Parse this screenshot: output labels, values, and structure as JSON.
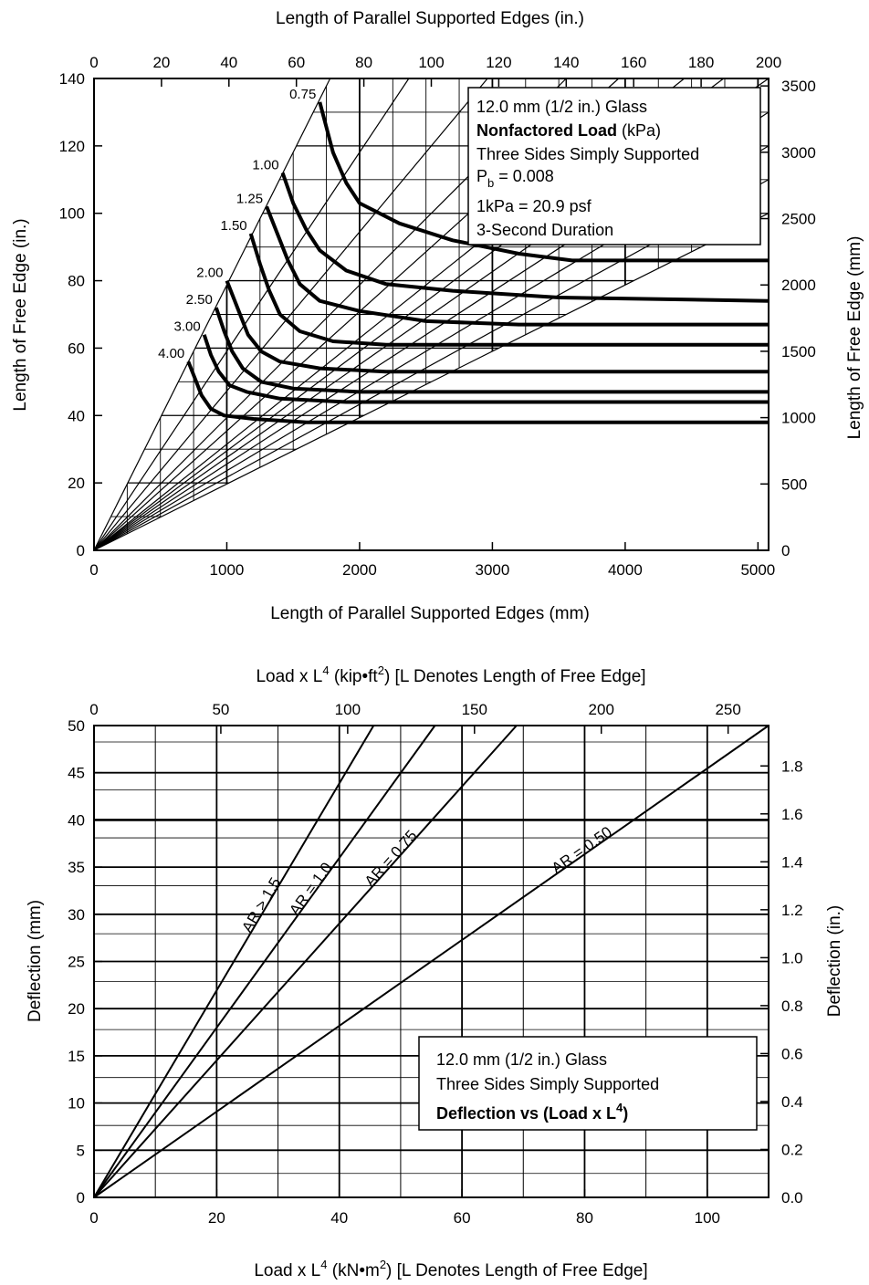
{
  "chart_data": [
    {
      "type": "line",
      "top_axis_title": "Length of Parallel Supported Edges (in.)",
      "xlabel": "Length of Parallel Supported Edges (mm)",
      "ylabel": "Length of Free Edge (in.)",
      "right_axis_title": "Length of Free Edge (mm)",
      "xlim": [
        0,
        5080
      ],
      "ylim": [
        0,
        140
      ],
      "x_ticks": [
        "0",
        "1000",
        "2000",
        "3000",
        "4000",
        "5000"
      ],
      "x_top_ticks": [
        "0",
        "20",
        "40",
        "60",
        "80",
        "100",
        "120",
        "140",
        "160",
        "180",
        "200"
      ],
      "y_ticks": [
        "0",
        "20",
        "40",
        "60",
        "80",
        "100",
        "120",
        "140"
      ],
      "y_right_ticks": [
        "0",
        "500",
        "1000",
        "1500",
        "2000",
        "2500",
        "3000",
        "3500"
      ],
      "grid": true,
      "legend_position": "top-right",
      "legend": {
        "line1": "12.0 mm (1/2 in.) Glass",
        "line2_bold": "Nonfactored Load",
        "line2_rest": " (kPa)",
        "line3": "Three Sides Simply Supported",
        "line4_main": "P",
        "line4_sub": "b",
        "line4_rest": " = 0.008",
        "line5": "1kPa = 20.9 psf",
        "line6": "3-Second Duration"
      },
      "series": [
        {
          "name": "0.75",
          "points": [
            [
              1700,
              133
            ],
            [
              1800,
              118
            ],
            [
              1900,
              109
            ],
            [
              2000,
              103
            ],
            [
              2300,
              97
            ],
            [
              2700,
              92
            ],
            [
              3200,
              88
            ],
            [
              3600,
              86
            ],
            [
              5080,
              86
            ]
          ]
        },
        {
          "name": "1.00",
          "points": [
            [
              1420,
              112
            ],
            [
              1500,
              103
            ],
            [
              1600,
              95
            ],
            [
              1700,
              89
            ],
            [
              1900,
              83
            ],
            [
              2200,
              79
            ],
            [
              2700,
              77
            ],
            [
              3500,
              75
            ],
            [
              5080,
              74
            ]
          ]
        },
        {
          "name": "1.25",
          "points": [
            [
              1300,
              102
            ],
            [
              1380,
              94
            ],
            [
              1460,
              86
            ],
            [
              1550,
              79
            ],
            [
              1700,
              74
            ],
            [
              2000,
              71
            ],
            [
              2500,
              68
            ],
            [
              3200,
              67
            ],
            [
              5080,
              67
            ]
          ]
        },
        {
          "name": "1.50",
          "points": [
            [
              1180,
              94
            ],
            [
              1250,
              85
            ],
            [
              1320,
              77
            ],
            [
              1400,
              70
            ],
            [
              1550,
              65
            ],
            [
              1800,
              62
            ],
            [
              2200,
              61
            ],
            [
              5080,
              61
            ]
          ]
        },
        {
          "name": "2.00",
          "points": [
            [
              1000,
              80
            ],
            [
              1080,
              72
            ],
            [
              1160,
              64
            ],
            [
              1260,
              59
            ],
            [
              1400,
              56
            ],
            [
              1700,
              54
            ],
            [
              2200,
              53
            ],
            [
              5080,
              53
            ]
          ]
        },
        {
          "name": "2.50",
          "points": [
            [
              920,
              72
            ],
            [
              980,
              65
            ],
            [
              1040,
              59
            ],
            [
              1120,
              54
            ],
            [
              1260,
              50
            ],
            [
              1500,
              48
            ],
            [
              2000,
              47
            ],
            [
              5080,
              47
            ]
          ]
        },
        {
          "name": "3.00",
          "points": [
            [
              830,
              64
            ],
            [
              880,
              58
            ],
            [
              940,
              53
            ],
            [
              1020,
              49
            ],
            [
              1150,
              47
            ],
            [
              1400,
              45
            ],
            [
              1900,
              44
            ],
            [
              5080,
              44
            ]
          ]
        },
        {
          "name": "4.00",
          "points": [
            [
              710,
              56
            ],
            [
              760,
              51
            ],
            [
              810,
              46
            ],
            [
              880,
              42
            ],
            [
              980,
              40
            ],
            [
              1200,
              39
            ],
            [
              1600,
              38
            ],
            [
              5080,
              38
            ]
          ]
        }
      ]
    },
    {
      "type": "line",
      "top_axis_title_pre": "Load x L",
      "top_axis_title_sup": "4",
      "top_axis_title_mid": " (kip",
      "top_axis_title_dot": "•",
      "top_axis_title_unit": "ft",
      "top_axis_title_unit_sup": "2",
      "top_axis_title_close": ")",
      "top_axis_title_post": "  [L Denotes Length of Free Edge]",
      "xlabel_pre": "Load x L",
      "xlabel_sup": "4",
      "xlabel_mid": " (kN",
      "xlabel_dot": "•",
      "xlabel_unit": "m",
      "xlabel_unit_sup": "2",
      "xlabel_close": ")",
      "xlabel_post": "  [L Denotes Length of Free Edge]",
      "ylabel": "Deflection (mm)",
      "right_axis_title": "Deflection (in.)",
      "xlim": [
        0,
        110
      ],
      "ylim": [
        0,
        50
      ],
      "x_ticks": [
        "0",
        "20",
        "40",
        "60",
        "80",
        "100"
      ],
      "x_top_ticks": [
        "0",
        "50",
        "100",
        "150",
        "200",
        "250"
      ],
      "y_ticks": [
        "0",
        "5",
        "10",
        "15",
        "20",
        "25",
        "30",
        "35",
        "40",
        "45",
        "50"
      ],
      "y_right_ticks": [
        "0.0",
        "0.2",
        "0.4",
        "0.6",
        "0.8",
        "1.0",
        "1.2",
        "1.4",
        "1.6",
        "1.8"
      ],
      "grid": true,
      "legend_position": "bottom-right",
      "legend": {
        "line1": "12.0 mm (1/2 in.) Glass",
        "line2": "Three Sides Simply Supported",
        "line3_bold": "Deflection vs (Load x L",
        "line3_sup": "4",
        "line3_close": ")"
      },
      "series": [
        {
          "name": "AR > 1.5",
          "points": [
            [
              0,
              0
            ],
            [
              45.6,
              50
            ]
          ]
        },
        {
          "name": "AR = 1.0",
          "points": [
            [
              0,
              0
            ],
            [
              55.6,
              50
            ]
          ]
        },
        {
          "name": "AR = 0.75",
          "points": [
            [
              0,
              0
            ],
            [
              68.9,
              50
            ]
          ]
        },
        {
          "name": "AR = 0.50",
          "points": [
            [
              0,
              0
            ],
            [
              110,
              50
            ]
          ]
        }
      ]
    }
  ]
}
